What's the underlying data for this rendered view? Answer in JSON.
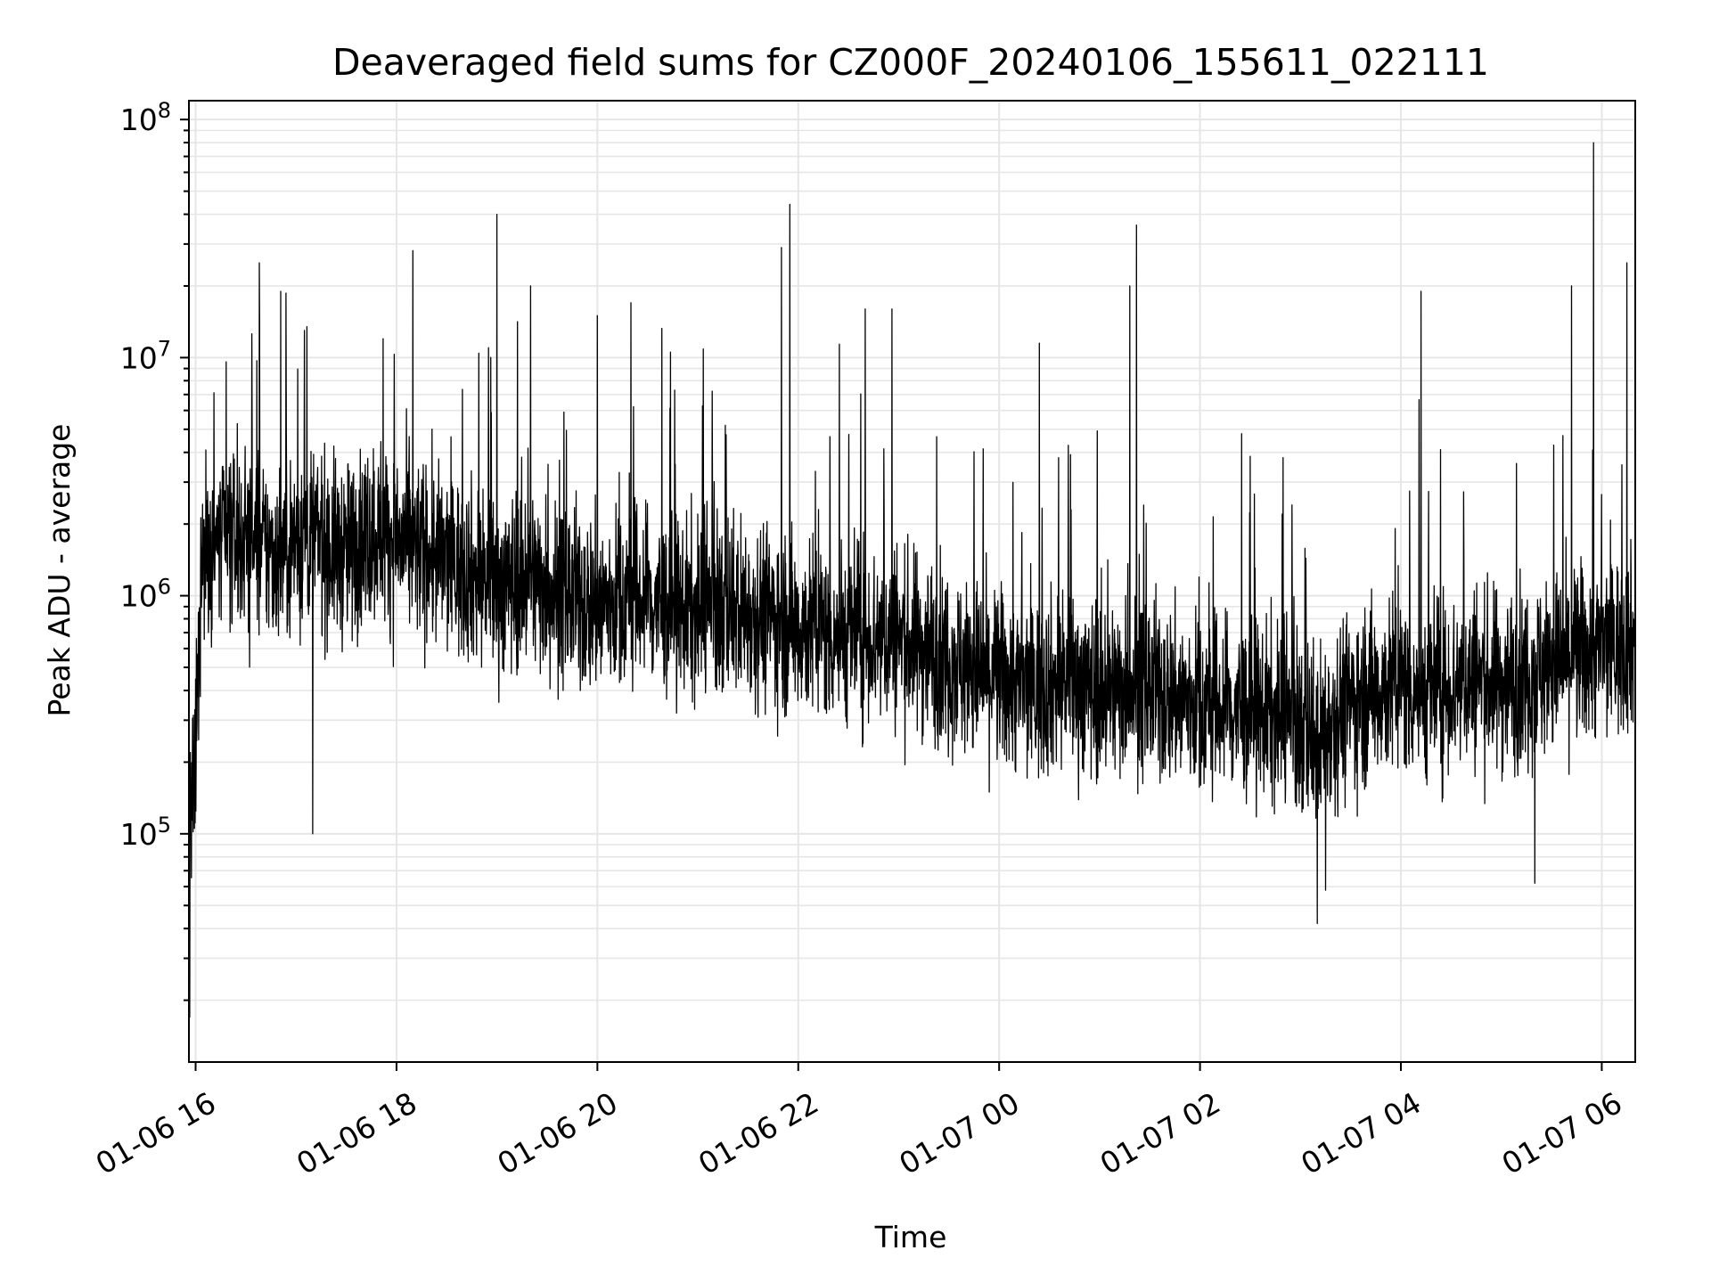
{
  "chart_data": {
    "type": "line",
    "title": "Deaveraged field sums for CZ000F_20240106_155611_022111",
    "xlabel": "Time",
    "ylabel": "Peak ADU - average",
    "y_scale": "log",
    "ylim": [
      11000,
      120000000
    ],
    "xlim": [
      "2024-01-06T15:56:00",
      "2024-01-07T06:20:00"
    ],
    "grid": true,
    "line_color": "#000000",
    "grid_color": "#e6e6e6",
    "x_ticks": [
      {
        "t": "2024-01-06T16:00:00",
        "label": "01-06 16"
      },
      {
        "t": "2024-01-06T18:00:00",
        "label": "01-06 18"
      },
      {
        "t": "2024-01-06T20:00:00",
        "label": "01-06 20"
      },
      {
        "t": "2024-01-06T22:00:00",
        "label": "01-06 22"
      },
      {
        "t": "2024-01-07T00:00:00",
        "label": "01-07 00"
      },
      {
        "t": "2024-01-07T02:00:00",
        "label": "01-07 02"
      },
      {
        "t": "2024-01-07T04:00:00",
        "label": "01-07 04"
      },
      {
        "t": "2024-01-07T06:00:00",
        "label": "01-07 06"
      }
    ],
    "y_ticks": [
      {
        "value": 100000,
        "base": "10",
        "exp": "5"
      },
      {
        "value": 1000000,
        "base": "10",
        "exp": "6"
      },
      {
        "value": 10000000,
        "base": "10",
        "exp": "7"
      },
      {
        "value": 100000000,
        "base": "10",
        "exp": "8"
      }
    ],
    "series": [
      {
        "x": [
          "2024-01-06T15:56:00",
          "2024-01-06T16:00:00",
          "2024-01-06T16:04:00",
          "2024-01-06T16:10:00",
          "2024-01-06T16:20:00",
          "2024-01-06T16:30:00",
          "2024-01-06T16:40:00",
          "2024-01-06T16:48:00",
          "2024-01-06T17:00:00",
          "2024-01-06T17:10:00",
          "2024-01-06T17:20:00",
          "2024-01-06T17:30:00",
          "2024-01-06T17:40:00",
          "2024-01-06T17:50:00",
          "2024-01-06T18:00:00",
          "2024-01-06T18:20:00",
          "2024-01-06T18:40:00",
          "2024-01-06T19:00:00",
          "2024-01-06T19:20:00",
          "2024-01-06T19:40:00",
          "2024-01-06T20:00:00",
          "2024-01-06T20:20:00",
          "2024-01-06T20:40:00",
          "2024-01-06T21:00:00",
          "2024-01-06T21:20:00",
          "2024-01-06T21:40:00",
          "2024-01-06T21:50:00",
          "2024-01-06T22:00:00",
          "2024-01-06T22:20:00",
          "2024-01-06T22:40:00",
          "2024-01-06T23:00:00",
          "2024-01-06T23:20:00",
          "2024-01-06T23:40:00",
          "2024-01-07T00:00:00",
          "2024-01-07T00:20:00",
          "2024-01-07T00:40:00",
          "2024-01-07T01:00:00",
          "2024-01-07T01:20:00",
          "2024-01-07T01:40:00",
          "2024-01-07T02:00:00",
          "2024-01-07T02:20:00",
          "2024-01-07T02:40:00",
          "2024-01-07T03:00:00",
          "2024-01-07T03:10:00",
          "2024-01-07T03:20:00",
          "2024-01-07T03:40:00",
          "2024-01-07T04:00:00",
          "2024-01-07T04:20:00",
          "2024-01-07T04:40:00",
          "2024-01-07T05:00:00",
          "2024-01-07T05:20:00",
          "2024-01-07T05:40:00",
          "2024-01-07T06:00:00",
          "2024-01-07T06:20:00"
        ],
        "median": [
          80000,
          200000,
          1500000,
          1600000,
          1700000,
          1800000,
          1600000,
          1500000,
          1700000,
          1800000,
          1600000,
          1500000,
          1800000,
          1900000,
          1700000,
          1500000,
          1300000,
          1100000,
          1200000,
          1000000,
          900000,
          1000000,
          900000,
          850000,
          900000,
          850000,
          800000,
          750000,
          700000,
          700000,
          650000,
          600000,
          500000,
          450000,
          400000,
          450000,
          400000,
          420000,
          380000,
          350000,
          330000,
          320000,
          280000,
          250000,
          320000,
          400000,
          420000,
          400000,
          450000,
          430000,
          480000,
          550000,
          600000,
          650000
        ],
        "spikes": [
          {
            "t": "2024-01-06T16:38:00",
            "value": 25000000
          },
          {
            "t": "2024-01-06T17:05:00",
            "value": 13000000
          },
          {
            "t": "2024-01-06T17:52:00",
            "value": 12000000
          },
          {
            "t": "2024-01-06T19:00:00",
            "value": 40000000
          },
          {
            "t": "2024-01-06T19:20:00",
            "value": 20000000
          },
          {
            "t": "2024-01-06T20:00:00",
            "value": 15000000
          },
          {
            "t": "2024-01-06T20:20:00",
            "value": 17000000
          },
          {
            "t": "2024-01-06T21:50:00",
            "value": 29000000
          },
          {
            "t": "2024-01-06T21:55:00",
            "value": 44000000
          },
          {
            "t": "2024-01-06T22:40:00",
            "value": 16000000
          },
          {
            "t": "2024-01-06T22:56:00",
            "value": 16000000
          },
          {
            "t": "2024-01-07T00:24:00",
            "value": 11500000
          },
          {
            "t": "2024-01-07T01:18:00",
            "value": 20000000
          },
          {
            "t": "2024-01-07T01:22:00",
            "value": 36000000
          },
          {
            "t": "2024-01-07T04:12:00",
            "value": 19000000
          },
          {
            "t": "2024-01-07T05:42:00",
            "value": 20000000
          },
          {
            "t": "2024-01-07T05:55:00",
            "value": 80000000
          },
          {
            "t": "2024-01-07T06:15:00",
            "value": 25000000
          }
        ],
        "dips": [
          {
            "t": "2024-01-06T15:56:30",
            "value": 17000
          },
          {
            "t": "2024-01-06T17:10:00",
            "value": 100000
          },
          {
            "t": "2024-01-07T03:10:00",
            "value": 42000
          },
          {
            "t": "2024-01-07T03:15:00",
            "value": 58000
          },
          {
            "t": "2024-01-07T05:20:00",
            "value": 62000
          }
        ]
      }
    ]
  }
}
